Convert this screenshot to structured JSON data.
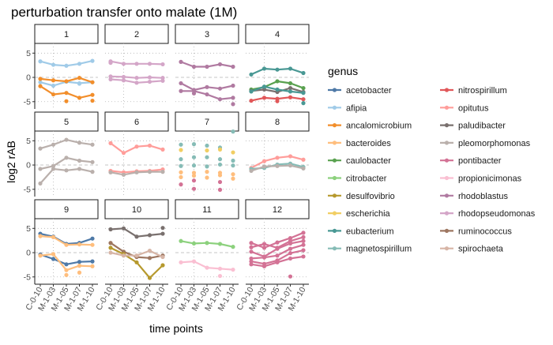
{
  "chart_data": {
    "type": "line",
    "title": "perturbation transfer onto malate (1M)",
    "xlabel": "time points",
    "ylabel": "log2 rAB",
    "x_categories": [
      "C-0-10",
      "M-1-03",
      "M-1-05",
      "M-1-07",
      "M-1-10"
    ],
    "y_ticks": [
      -5,
      0,
      5
    ],
    "ylim": [
      -6.5,
      7
    ],
    "legend_title": "genus",
    "legend": [
      {
        "name": "acetobacter",
        "color": "#4e79a7"
      },
      {
        "name": "afipia",
        "color": "#a0cbe8"
      },
      {
        "name": "ancalomicrobium",
        "color": "#f28e2b"
      },
      {
        "name": "bacteroides",
        "color": "#ffbe7d"
      },
      {
        "name": "caulobacter",
        "color": "#59a14f"
      },
      {
        "name": "citrobacter",
        "color": "#8cd17d"
      },
      {
        "name": "desulfovibrio",
        "color": "#b6992d"
      },
      {
        "name": "escherichia",
        "color": "#f1ce63"
      },
      {
        "name": "eubacterium",
        "color": "#499894"
      },
      {
        "name": "magnetospirillum",
        "color": "#86bcb6"
      },
      {
        "name": "nitrospirillum",
        "color": "#e15759"
      },
      {
        "name": "opitutus",
        "color": "#ff9d9a"
      },
      {
        "name": "paludibacter",
        "color": "#79706e"
      },
      {
        "name": "pleomorphomonas",
        "color": "#bab0ac"
      },
      {
        "name": "pontibacter",
        "color": "#d37295"
      },
      {
        "name": "propionicimonas",
        "color": "#fabfd2"
      },
      {
        "name": "rhodoblastus",
        "color": "#b07aa1"
      },
      {
        "name": "rhodopseudomonas",
        "color": "#d4a6c8"
      },
      {
        "name": "ruminococcus",
        "color": "#9d7660"
      },
      {
        "name": "spirochaeta",
        "color": "#d7b5a6"
      }
    ],
    "facets": [
      {
        "label": "1",
        "lines": [
          {
            "genus": "afipia",
            "values": [
              3.3,
              2.6,
              2.4,
              2.8,
              3.4
            ]
          },
          {
            "genus": "afipia",
            "values": [
              -1.0,
              -1.7,
              -0.9,
              -1.2,
              -1.0
            ]
          },
          {
            "genus": "ancalomicrobium",
            "values": [
              -0.3,
              -0.6,
              -0.8,
              -0.1,
              -1.0
            ]
          },
          {
            "genus": "ancalomicrobium",
            "values": [
              -1.8,
              -3.5,
              -3.2,
              -4.2,
              -3.6
            ]
          }
        ],
        "points": [
          {
            "genus": "ancalomicrobium",
            "x": 4,
            "y": -4.8
          },
          {
            "genus": "ancalomicrobium",
            "x": 2,
            "y": -4.9
          },
          {
            "genus": "afipia",
            "x": 3,
            "y": -1.3
          }
        ]
      },
      {
        "label": "2",
        "lines": [
          {
            "genus": "rhodopseudomonas",
            "values": [
              3.3,
              2.8,
              2.8,
              2.8,
              2.7
            ]
          },
          {
            "genus": "rhodopseudomonas",
            "values": [
              0.2,
              0.1,
              -0.1,
              0.0,
              -0.1
            ]
          },
          {
            "genus": "rhodopseudomonas",
            "values": [
              -0.4,
              -0.6,
              -1.1,
              -0.9,
              -0.7
            ]
          }
        ],
        "points": [
          {
            "genus": "rhodopseudomonas",
            "x": 0,
            "y": 3.0
          }
        ]
      },
      {
        "label": "3",
        "lines": [
          {
            "genus": "rhodoblastus",
            "values": [
              3.2,
              2.2,
              2.2,
              2.7,
              2.2
            ]
          },
          {
            "genus": "rhodoblastus",
            "values": [
              -1.2,
              -2.6,
              -2.0,
              -2.3,
              -1.7
            ]
          },
          {
            "genus": "rhodoblastus",
            "values": [
              -2.8,
              -2.8,
              -3.5,
              -4.5,
              -4.2
            ]
          }
        ],
        "points": [
          {
            "genus": "rhodoblastus",
            "x": 4,
            "y": -5.5
          },
          {
            "genus": "rhodoblastus",
            "x": 1,
            "y": -3.3
          }
        ]
      },
      {
        "label": "4",
        "lines": [
          {
            "genus": "eubacterium",
            "values": [
              0.6,
              1.8,
              1.6,
              1.8,
              0.9
            ]
          },
          {
            "genus": "caulobacter",
            "values": [
              -2.5,
              -2.0,
              -0.8,
              -1.2,
              -2.2
            ]
          },
          {
            "genus": "paludibacter",
            "values": [
              -2.8,
              -2.5,
              -3.0,
              -2.2,
              -3.0
            ]
          },
          {
            "genus": "eubacterium",
            "values": [
              -2.9,
              -1.9,
              -2.5,
              -2.9,
              -3.2
            ]
          },
          {
            "genus": "nitrospirillum",
            "values": [
              -4.8,
              -4.2,
              -4.4,
              -4.1,
              -4.5
            ]
          }
        ],
        "points": [
          {
            "genus": "eubacterium",
            "x": 4,
            "y": -5.3
          },
          {
            "genus": "nitrospirillum",
            "x": 2,
            "y": -4.9
          }
        ]
      },
      {
        "label": "5",
        "lines": [
          {
            "genus": "pleomorphomonas",
            "values": [
              3.4,
              4.2,
              5.2,
              4.6,
              4.2
            ]
          },
          {
            "genus": "pleomorphomonas",
            "values": [
              -0.8,
              -0.2,
              1.5,
              0.9,
              0.6
            ]
          },
          {
            "genus": "pleomorphomonas",
            "values": [
              -3.8,
              -0.8,
              -1.1,
              -0.8,
              -1.4
            ]
          }
        ],
        "points": []
      },
      {
        "label": "6",
        "lines": [
          {
            "genus": "opitutus",
            "values": [
              4.5,
              2.5,
              3.8,
              4.0,
              3.2
            ]
          },
          {
            "genus": "opitutus",
            "values": [
              -1.2,
              -1.5,
              -1.3,
              -1.2,
              -0.9
            ]
          },
          {
            "genus": "pleomorphomonas",
            "values": [
              -1.5,
              -2.0,
              -1.5,
              -1.4,
              -1.4
            ]
          }
        ],
        "points": []
      },
      {
        "label": "7",
        "lines": [],
        "points": [
          {
            "genus": "magnetospirillum",
            "x": 0,
            "y": 4.2
          },
          {
            "genus": "magnetospirillum",
            "x": 1,
            "y": 4.3
          },
          {
            "genus": "magnetospirillum",
            "x": 2,
            "y": 4.0
          },
          {
            "genus": "magnetospirillum",
            "x": 3,
            "y": 3.6
          },
          {
            "genus": "magnetospirillum",
            "x": 4,
            "y": 6.9
          },
          {
            "genus": "escherichia",
            "x": 0,
            "y": 3.1
          },
          {
            "genus": "escherichia",
            "x": 2,
            "y": 3.0
          },
          {
            "genus": "escherichia",
            "x": 3,
            "y": 3.2
          },
          {
            "genus": "escherichia",
            "x": 4,
            "y": 2.6
          },
          {
            "genus": "magnetospirillum",
            "x": 0,
            "y": 1.2
          },
          {
            "genus": "magnetospirillum",
            "x": 1,
            "y": 1.6
          },
          {
            "genus": "magnetospirillum",
            "x": 2,
            "y": 1.6
          },
          {
            "genus": "magnetospirillum",
            "x": 3,
            "y": 1.2
          },
          {
            "genus": "magnetospirillum",
            "x": 4,
            "y": 0.9
          },
          {
            "genus": "magnetospirillum",
            "x": 0,
            "y": -0.2
          },
          {
            "genus": "magnetospirillum",
            "x": 1,
            "y": -0.1
          },
          {
            "genus": "magnetospirillum",
            "x": 2,
            "y": -0.3
          },
          {
            "genus": "magnetospirillum",
            "x": 3,
            "y": 0.1
          },
          {
            "genus": "magnetospirillum",
            "x": 4,
            "y": -0.1
          },
          {
            "genus": "bacteroides",
            "x": 0,
            "y": -1.5
          },
          {
            "genus": "bacteroides",
            "x": 1,
            "y": -1.6
          },
          {
            "genus": "bacteroides",
            "x": 2,
            "y": -1.4
          },
          {
            "genus": "bacteroides",
            "x": 3,
            "y": -1.6
          },
          {
            "genus": "bacteroides",
            "x": 4,
            "y": -1.9
          },
          {
            "genus": "bacteroides",
            "x": 0,
            "y": -2.5
          },
          {
            "genus": "bacteroides",
            "x": 1,
            "y": -2.2
          },
          {
            "genus": "bacteroides",
            "x": 2,
            "y": -2.6
          },
          {
            "genus": "bacteroides",
            "x": 3,
            "y": -2.1
          },
          {
            "genus": "bacteroides",
            "x": 4,
            "y": -2.8
          },
          {
            "genus": "pontibacter",
            "x": 1,
            "y": -3.2
          },
          {
            "genus": "pontibacter",
            "x": 3,
            "y": -3.5
          },
          {
            "genus": "pontibacter",
            "x": 0,
            "y": -4.0
          },
          {
            "genus": "pontibacter",
            "x": 3,
            "y": -5.1
          },
          {
            "genus": "pontibacter",
            "x": 1,
            "y": -4.9
          }
        ]
      },
      {
        "label": "8",
        "lines": [
          {
            "genus": "opitutus",
            "values": [
              -0.6,
              0.8,
              1.5,
              1.8,
              1.1
            ]
          },
          {
            "genus": "magnetospirillum",
            "values": [
              -0.8,
              -0.6,
              0.1,
              0.3,
              -0.4
            ]
          },
          {
            "genus": "pleomorphomonas",
            "values": [
              -1.2,
              -0.3,
              -0.2,
              -0.1,
              -0.7
            ]
          }
        ],
        "points": []
      },
      {
        "label": "9",
        "lines": [
          {
            "genus": "acetobacter",
            "values": [
              3.9,
              3.3,
              1.8,
              2.0,
              2.9
            ]
          },
          {
            "genus": "bacteroides",
            "values": [
              3.4,
              3.2,
              1.6,
              1.7,
              1.6
            ]
          },
          {
            "genus": "acetobacter",
            "values": [
              -0.4,
              -1.3,
              -2.4,
              -1.9,
              -1.8
            ]
          },
          {
            "genus": "bacteroides",
            "values": [
              -0.6,
              -0.3,
              -3.6,
              -2.7,
              -2.8
            ]
          }
        ],
        "points": [
          {
            "genus": "bacteroides",
            "x": 2,
            "y": -4.6
          },
          {
            "genus": "bacteroides",
            "x": 3,
            "y": -4.1
          }
        ]
      },
      {
        "label": "10",
        "lines": [
          {
            "genus": "paludibacter",
            "values": [
              4.8,
              5.0,
              3.3,
              3.6,
              3.9
            ]
          },
          {
            "genus": "ruminococcus",
            "values": [
              2.0,
              0.2,
              -0.9,
              -1.1,
              -0.6
            ]
          },
          {
            "genus": "desulfovibrio",
            "values": [
              1.0,
              -0.3,
              -2.0,
              -5.2,
              -2.6
            ]
          },
          {
            "genus": "spirochaeta",
            "values": [
              0.0,
              -0.6,
              -0.6,
              0.4,
              -0.9
            ]
          }
        ],
        "points": [
          {
            "genus": "paludibacter",
            "x": 4,
            "y": 5.1
          }
        ]
      },
      {
        "label": "11",
        "lines": [
          {
            "genus": "citrobacter",
            "values": [
              2.4,
              1.9,
              2.0,
              1.8,
              1.2
            ]
          },
          {
            "genus": "propionicimonas",
            "values": [
              -2.0,
              -1.8,
              -3.1,
              -3.3,
              -3.5
            ]
          }
        ],
        "points": [
          {
            "genus": "propionicimonas",
            "x": 3,
            "y": -4.8
          }
        ]
      },
      {
        "label": "12",
        "lines": [
          {
            "genus": "pontibacter",
            "values": [
              2.0,
              1.0,
              2.1,
              3.0,
              4.1
            ]
          },
          {
            "genus": "pontibacter",
            "values": [
              1.1,
              1.8,
              1.0,
              2.4,
              3.2
            ]
          },
          {
            "genus": "pontibacter",
            "values": [
              0.2,
              -0.8,
              0.8,
              1.9,
              2.4
            ]
          },
          {
            "genus": "pontibacter",
            "values": [
              -1.2,
              -1.0,
              -0.6,
              0.8,
              1.6
            ]
          },
          {
            "genus": "pontibacter",
            "values": [
              -1.8,
              -2.3,
              -1.6,
              -0.1,
              0.5
            ]
          },
          {
            "genus": "pontibacter",
            "values": [
              -2.4,
              -2.8,
              -2.0,
              -1.2,
              -0.8
            ]
          }
        ],
        "points": [
          {
            "genus": "pontibacter",
            "x": 3,
            "y": -4.9
          }
        ]
      }
    ]
  }
}
